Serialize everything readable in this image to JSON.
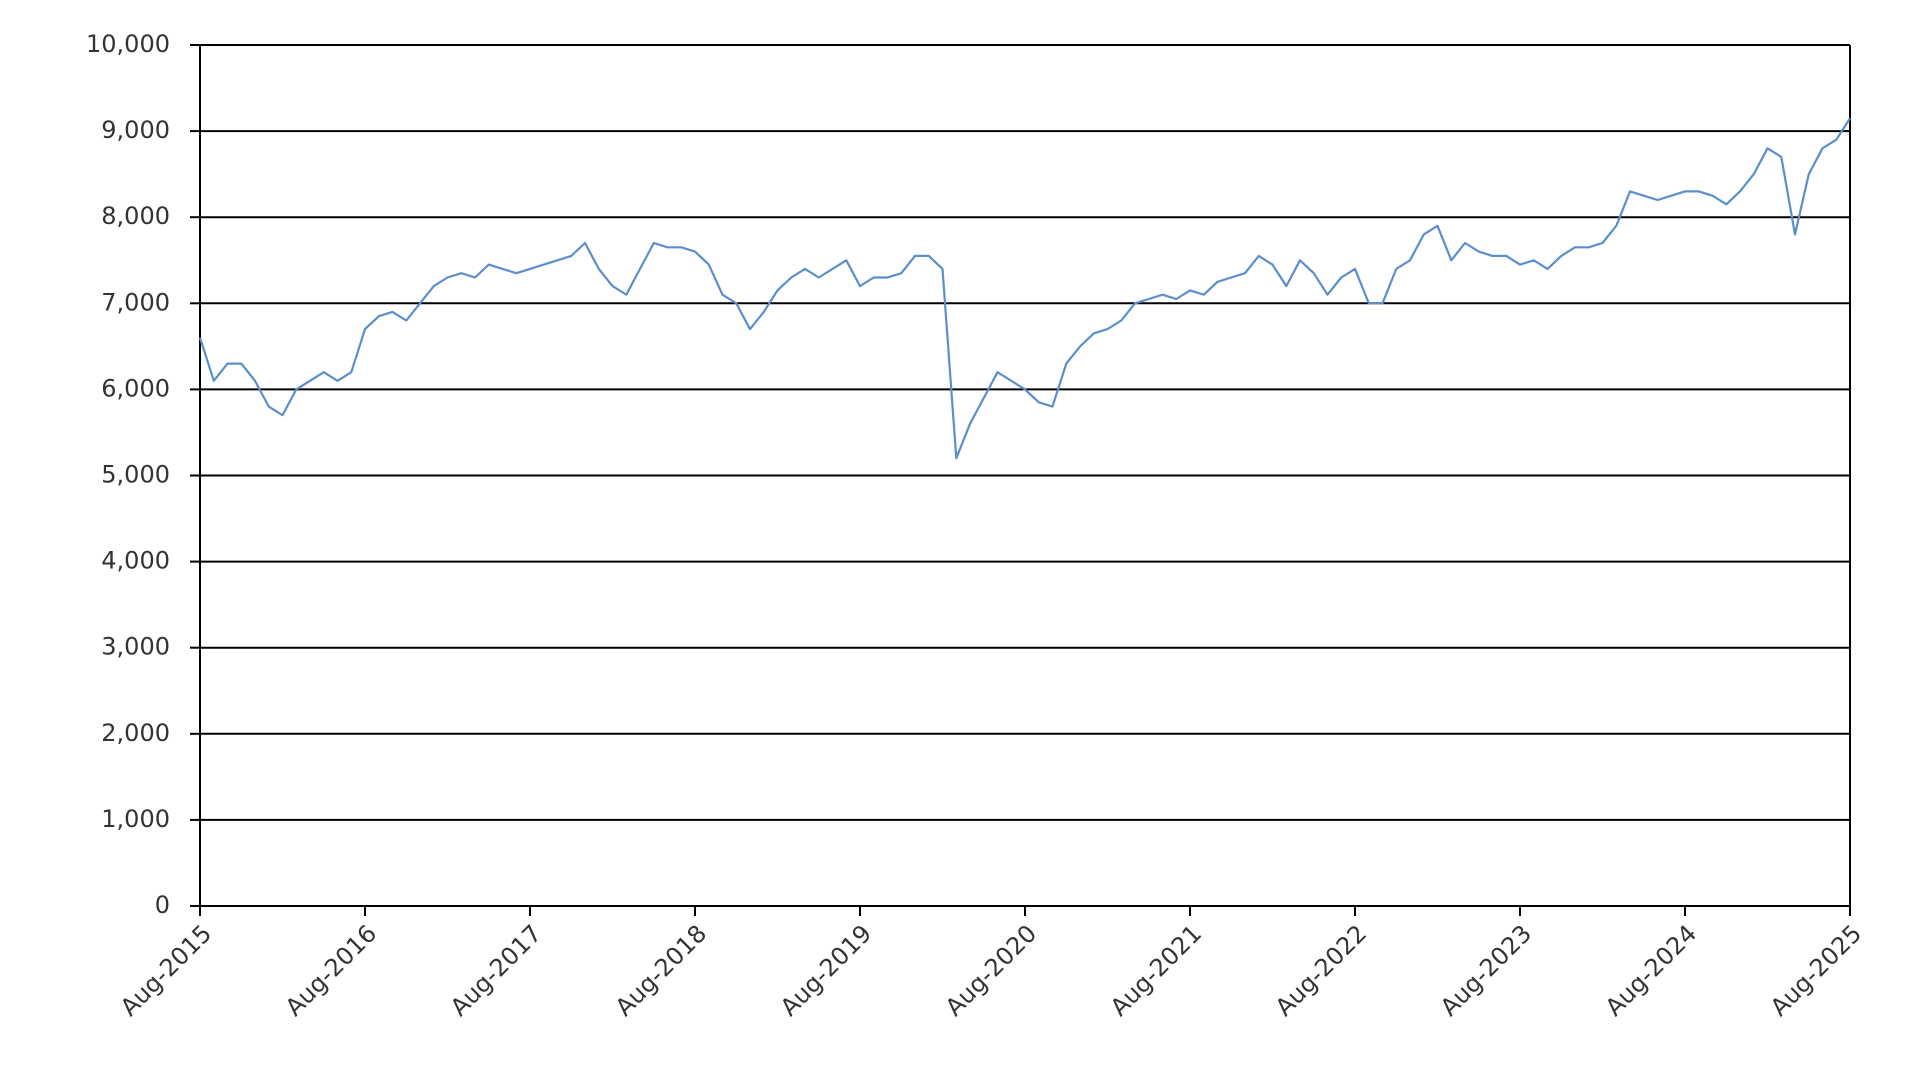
{
  "chart_data": {
    "type": "line",
    "color": "#5b8fcb",
    "grid": true,
    "x": [
      "2015-08",
      "2015-09",
      "2015-10",
      "2015-11",
      "2015-12",
      "2016-01",
      "2016-02",
      "2016-03",
      "2016-04",
      "2016-05",
      "2016-06",
      "2016-07",
      "2016-08",
      "2016-09",
      "2016-10",
      "2016-11",
      "2016-12",
      "2017-01",
      "2017-02",
      "2017-03",
      "2017-04",
      "2017-05",
      "2017-06",
      "2017-07",
      "2017-08",
      "2017-09",
      "2017-10",
      "2017-11",
      "2017-12",
      "2018-01",
      "2018-02",
      "2018-03",
      "2018-04",
      "2018-05",
      "2018-06",
      "2018-07",
      "2018-08",
      "2018-09",
      "2018-10",
      "2018-11",
      "2018-12",
      "2019-01",
      "2019-02",
      "2019-03",
      "2019-04",
      "2019-05",
      "2019-06",
      "2019-07",
      "2019-08",
      "2019-09",
      "2019-10",
      "2019-11",
      "2019-12",
      "2020-01",
      "2020-02",
      "2020-03",
      "2020-04",
      "2020-05",
      "2020-06",
      "2020-07",
      "2020-08",
      "2020-09",
      "2020-10",
      "2020-11",
      "2020-12",
      "2021-01",
      "2021-02",
      "2021-03",
      "2021-04",
      "2021-05",
      "2021-06",
      "2021-07",
      "2021-08",
      "2021-09",
      "2021-10",
      "2021-11",
      "2021-12",
      "2022-01",
      "2022-02",
      "2022-03",
      "2022-04",
      "2022-05",
      "2022-06",
      "2022-07",
      "2022-08",
      "2022-09",
      "2022-10",
      "2022-11",
      "2022-12",
      "2023-01",
      "2023-02",
      "2023-03",
      "2023-04",
      "2023-05",
      "2023-06",
      "2023-07",
      "2023-08",
      "2023-09",
      "2023-10",
      "2023-11",
      "2023-12",
      "2024-01",
      "2024-02",
      "2024-03",
      "2024-04",
      "2024-05",
      "2024-06",
      "2024-07",
      "2024-08",
      "2024-09",
      "2024-10",
      "2024-11",
      "2024-12",
      "2025-01",
      "2025-02",
      "2025-03",
      "2025-04",
      "2025-05",
      "2025-06",
      "2025-07",
      "2025-08"
    ],
    "values": [
      6600,
      6100,
      6300,
      6300,
      6100,
      5800,
      5700,
      6000,
      6100,
      6200,
      6100,
      6200,
      6700,
      6850,
      6900,
      6800,
      7000,
      7200,
      7300,
      7350,
      7300,
      7450,
      7400,
      7350,
      7400,
      7450,
      7500,
      7550,
      7700,
      7400,
      7200,
      7100,
      7400,
      7700,
      7650,
      7650,
      7600,
      7450,
      7100,
      7000,
      6700,
      6900,
      7150,
      7300,
      7400,
      7300,
      7400,
      7500,
      7200,
      7300,
      7300,
      7350,
      7550,
      7550,
      7400,
      5200,
      5600,
      5900,
      6200,
      6100,
      6000,
      5850,
      5800,
      6300,
      6500,
      6650,
      6700,
      6800,
      7000,
      7050,
      7100,
      7050,
      7150,
      7100,
      7250,
      7300,
      7350,
      7550,
      7450,
      7200,
      7500,
      7350,
      7100,
      7300,
      7400,
      7000,
      7000,
      7400,
      7500,
      7800,
      7900,
      7500,
      7700,
      7600,
      7550,
      7550,
      7450,
      7500,
      7400,
      7550,
      7650,
      7650,
      7700,
      7900,
      8300,
      8250,
      8200,
      8250,
      8300,
      8300,
      8250,
      8150,
      8300,
      8500,
      8800,
      8700,
      7800,
      8500,
      8800,
      8900,
      9150
    ],
    "xlim": [
      "2015-08",
      "2025-08"
    ],
    "xticks": [
      {
        "value": "2015-08",
        "label": "Aug-2015"
      },
      {
        "value": "2016-08",
        "label": "Aug-2016"
      },
      {
        "value": "2017-08",
        "label": "Aug-2017"
      },
      {
        "value": "2018-08",
        "label": "Aug-2018"
      },
      {
        "value": "2019-08",
        "label": "Aug-2019"
      },
      {
        "value": "2020-08",
        "label": "Aug-2020"
      },
      {
        "value": "2021-08",
        "label": "Aug-2021"
      },
      {
        "value": "2022-08",
        "label": "Aug-2022"
      },
      {
        "value": "2023-08",
        "label": "Aug-2023"
      },
      {
        "value": "2024-08",
        "label": "Aug-2024"
      },
      {
        "value": "2025-08",
        "label": "Aug-2025"
      }
    ],
    "ylim": [
      0,
      10000
    ],
    "yticks": [
      0,
      {
        "value": 1000,
        "label": "1,000"
      },
      {
        "value": 2000,
        "label": "2,000"
      },
      {
        "value": 3000,
        "label": "3,000"
      },
      {
        "value": 4000,
        "label": "4,000"
      },
      {
        "value": 5000,
        "label": "5,000"
      },
      {
        "value": 6000,
        "label": "6,000"
      },
      {
        "value": 7000,
        "label": "7,000"
      },
      {
        "value": 8000,
        "label": "8,000"
      },
      {
        "value": 9000,
        "label": "9,000"
      },
      {
        "value": 10000,
        "label": "10,000"
      }
    ]
  }
}
